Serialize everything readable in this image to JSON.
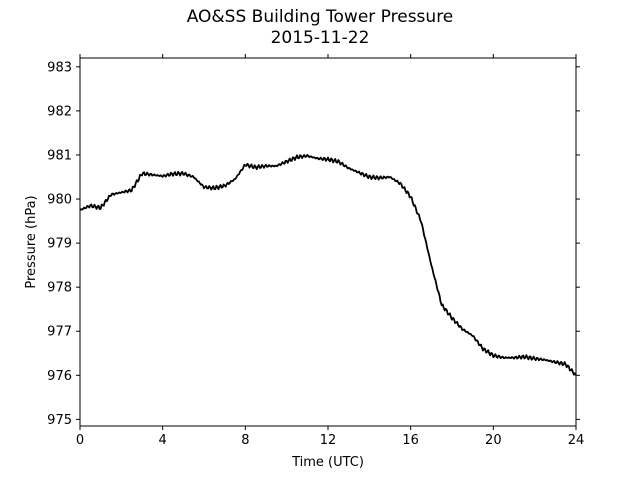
{
  "chart_data": {
    "type": "line",
    "title": "AO&SS Building Tower Pressure",
    "subtitle": "2015-11-22",
    "xlabel": "Time (UTC)",
    "ylabel": "Pressure (hPa)",
    "xlim": [
      0,
      24
    ],
    "ylim": [
      974.85,
      983.2
    ],
    "xticks": [
      0,
      4,
      8,
      12,
      16,
      20,
      24
    ],
    "yticks": [
      975,
      976,
      977,
      978,
      979,
      980,
      981,
      982,
      983
    ],
    "grid": false,
    "legend": "none",
    "line_color": "#000000",
    "series": [
      {
        "x": [
          0,
          0.5,
          1.0,
          1.5,
          2.0,
          2.5,
          3.0,
          3.5,
          4.0,
          4.5,
          5.0,
          5.5,
          6.0,
          6.5,
          7.0,
          7.5,
          8.0,
          8.5,
          9.0,
          9.5,
          10.0,
          10.5,
          11.0,
          11.5,
          12.0,
          12.5,
          13.0,
          13.5,
          14.0,
          14.5,
          15.0,
          15.5,
          16.0,
          16.5,
          17.0,
          17.5,
          18.0,
          18.5,
          19.0,
          19.5,
          20.0,
          20.5,
          21.0,
          21.5,
          22.0,
          22.5,
          23.0,
          23.5,
          24.0
        ],
        "y": [
          979.75,
          979.85,
          979.8,
          980.1,
          980.15,
          980.2,
          980.58,
          980.55,
          980.52,
          980.57,
          980.58,
          980.5,
          980.27,
          980.25,
          980.3,
          980.45,
          980.78,
          980.72,
          980.75,
          980.75,
          980.85,
          980.95,
          980.98,
          980.92,
          980.9,
          980.85,
          980.7,
          980.6,
          980.5,
          980.48,
          980.5,
          980.35,
          980.05,
          979.5,
          978.5,
          977.6,
          977.3,
          977.05,
          976.9,
          976.6,
          976.45,
          976.4,
          976.4,
          976.42,
          976.38,
          976.35,
          976.3,
          976.25,
          976.0
        ]
      }
    ]
  }
}
